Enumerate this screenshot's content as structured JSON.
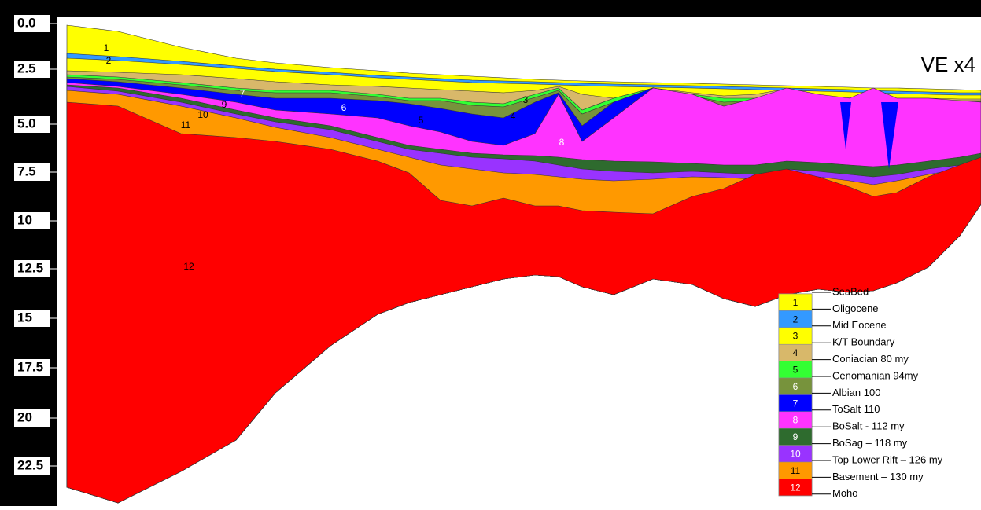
{
  "axis": {
    "labels": [
      "0.0",
      "2.5",
      "5.0",
      "7.5",
      "10",
      "12.5",
      "15",
      "17.5",
      "20",
      "22.5"
    ]
  },
  "ve_label": "VE x4",
  "legend": {
    "boxes": [
      {
        "number": "1",
        "color": "#ffff00"
      },
      {
        "number": "2",
        "color": "#3399ff"
      },
      {
        "number": "3",
        "color": "#ffff00"
      },
      {
        "number": "4",
        "color": "#d8b86a"
      },
      {
        "number": "5",
        "color": "#33ff33"
      },
      {
        "number": "6",
        "color": "#77933c"
      },
      {
        "number": "7",
        "color": "#0000ff"
      },
      {
        "number": "8",
        "color": "#ff33ff"
      },
      {
        "number": "9",
        "color": "#2e6b2e"
      },
      {
        "number": "10",
        "color": "#9933ff"
      },
      {
        "number": "11",
        "color": "#ff9900"
      },
      {
        "number": "12",
        "color": "#ff0000"
      }
    ],
    "boundaries": [
      "SeaBed",
      "Oligocene",
      "Mid Eocene",
      "K/T Boundary",
      "Coniacian 80 my",
      "Cenomanian 94my",
      "Albian 100",
      "ToSalt 110",
      "BoSalt  - 112 my",
      "BoSag – 118 my",
      "Top Lower Rift – 126 my",
      "Basement – 130 my",
      "Moho"
    ]
  }
}
